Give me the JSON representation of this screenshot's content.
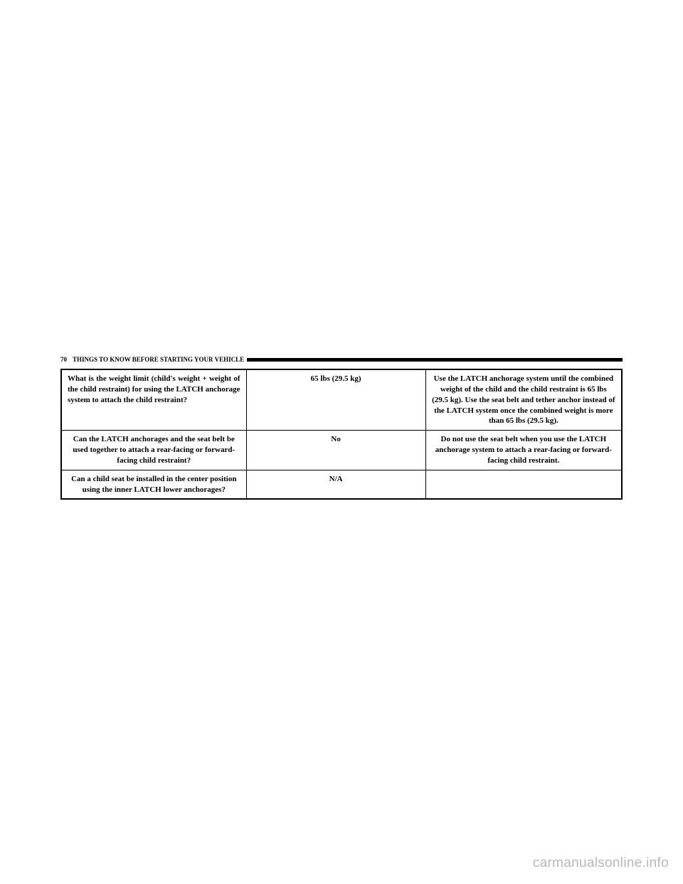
{
  "header": {
    "page_number": "70",
    "section_title": "THINGS TO KNOW BEFORE STARTING YOUR VEHICLE"
  },
  "table": {
    "rows": [
      {
        "question": "What is the weight limit (child's weight + weight of the child restraint) for using the LATCH anchorage system to attach the child restraint?",
        "answer": "65 lbs (29.5 kg)",
        "detail": "Use the LATCH anchorage system until the combined weight of the child and the child restraint is 65 lbs (29.5 kg). Use the seat belt and tether anchor instead of the LATCH system once the combined weight is more than 65 lbs (29.5 kg)."
      },
      {
        "question": "Can the LATCH anchorages and the seat belt be used together to attach a rear-facing or forward-facing child restraint?",
        "answer": "No",
        "detail": "Do not use the seat belt when you use the LATCH anchorage system to attach a rear-facing or forward-facing child restraint."
      },
      {
        "question": "Can a child seat be installed in the center position using the inner LATCH lower anchorages?",
        "answer": "N/A",
        "detail": ""
      }
    ]
  },
  "watermark": "carmanualsonline.info",
  "colors": {
    "text": "#000000",
    "border": "#000000",
    "background": "#ffffff",
    "watermark": "#b8b8b8"
  }
}
